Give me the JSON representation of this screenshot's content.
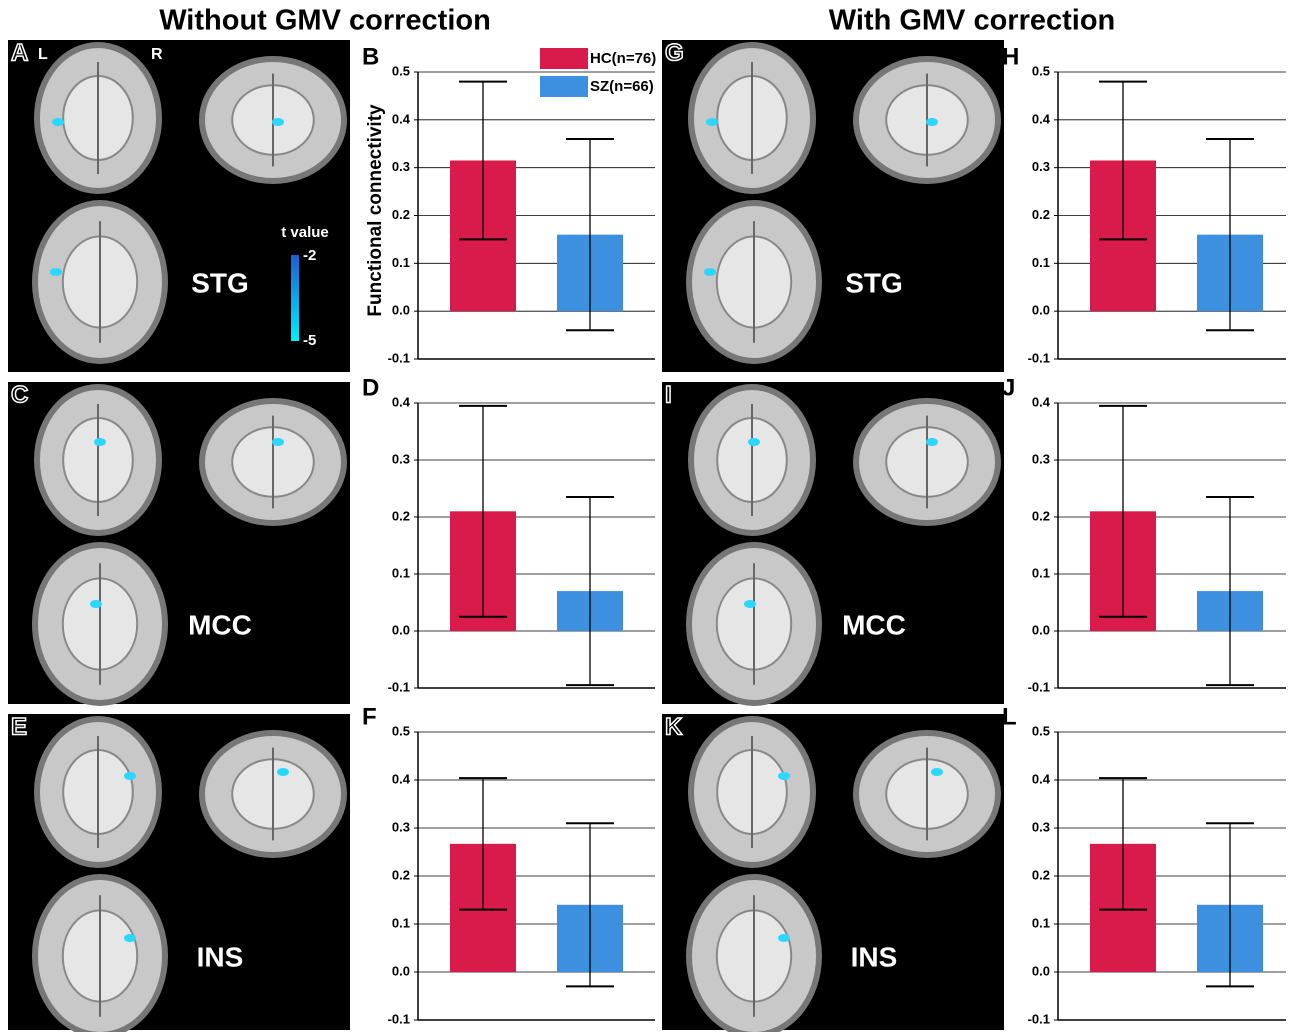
{
  "headers": [
    "Without GMV correction",
    "With GMV correction"
  ],
  "brain_panels": [
    {
      "letter": "A",
      "region": "STG",
      "sides": [
        "L",
        "R"
      ],
      "colorbar": {
        "title": "t value",
        "ends": [
          -2,
          -5
        ]
      }
    },
    {
      "letter": "C",
      "region": "MCC"
    },
    {
      "letter": "E",
      "region": "INS"
    },
    {
      "letter": "G",
      "region": "STG"
    },
    {
      "letter": "I",
      "region": "MCC"
    },
    {
      "letter": "K",
      "region": "INS"
    }
  ],
  "chart_data": [
    {
      "type": "bar",
      "panel": "B",
      "ylabel": "Functional connectivity",
      "legend": true,
      "series": [
        {
          "name": "HC(n=76)",
          "color": "#d81b4a",
          "values": [
            0.315
          ],
          "errors": [
            0.165
          ]
        },
        {
          "name": "SZ(n=66)",
          "color": "#3d8fe0",
          "values": [
            0.16
          ],
          "errors": [
            0.2
          ]
        }
      ],
      "ylim": [
        -0.1,
        0.5
      ],
      "yticks": [
        -0.1,
        {
          "value": 0,
          "label": "0.0"
        },
        0.1,
        0.2,
        0.3,
        0.4,
        0.5
      ],
      "grid": true
    },
    {
      "type": "bar",
      "panel": "D",
      "series": [
        {
          "color": "#d81b4a",
          "values": [
            0.21
          ],
          "errors": [
            0.185
          ]
        },
        {
          "color": "#3d8fe0",
          "values": [
            0.07
          ],
          "errors": [
            0.165
          ]
        }
      ],
      "ylim": [
        -0.1,
        0.4
      ],
      "yticks": [
        -0.1,
        {
          "value": 0,
          "label": "0.0"
        },
        0.1,
        0.2,
        0.3,
        0.4
      ],
      "grid": true
    },
    {
      "type": "bar",
      "panel": "F",
      "series": [
        {
          "color": "#d81b4a",
          "values": [
            0.267
          ],
          "errors": [
            0.137
          ]
        },
        {
          "color": "#3d8fe0",
          "values": [
            0.14
          ],
          "errors": [
            0.17
          ]
        }
      ],
      "ylim": [
        -0.1,
        0.5
      ],
      "yticks": [
        -0.1,
        {
          "value": 0,
          "label": "0.0"
        },
        0.1,
        0.2,
        0.3,
        0.4,
        0.5
      ],
      "grid": true
    },
    {
      "type": "bar",
      "panel": "H",
      "series": [
        {
          "color": "#d81b4a",
          "values": [
            0.315
          ],
          "errors": [
            0.165
          ]
        },
        {
          "color": "#3d8fe0",
          "values": [
            0.16
          ],
          "errors": [
            0.2
          ]
        }
      ],
      "ylim": [
        -0.1,
        0.5
      ],
      "yticks": [
        -0.1,
        {
          "value": 0,
          "label": "0.0"
        },
        0.1,
        0.2,
        0.3,
        0.4,
        0.5
      ],
      "grid": true
    },
    {
      "type": "bar",
      "panel": "J",
      "series": [
        {
          "color": "#d81b4a",
          "values": [
            0.21
          ],
          "errors": [
            0.185
          ]
        },
        {
          "color": "#3d8fe0",
          "values": [
            0.07
          ],
          "errors": [
            0.165
          ]
        }
      ],
      "ylim": [
        -0.1,
        0.4
      ],
      "yticks": [
        -0.1,
        {
          "value": 0,
          "label": "0.0"
        },
        0.1,
        0.2,
        0.3,
        0.4
      ],
      "grid": true
    },
    {
      "type": "bar",
      "panel": "L",
      "series": [
        {
          "color": "#d81b4a",
          "values": [
            0.267
          ],
          "errors": [
            0.137
          ]
        },
        {
          "color": "#3d8fe0",
          "values": [
            0.14
          ],
          "errors": [
            0.17
          ]
        }
      ],
      "ylim": [
        -0.1,
        0.5
      ],
      "yticks": [
        -0.1,
        {
          "value": 0,
          "label": "0.0"
        },
        0.1,
        0.2,
        0.3,
        0.4,
        0.5
      ],
      "grid": true
    }
  ]
}
